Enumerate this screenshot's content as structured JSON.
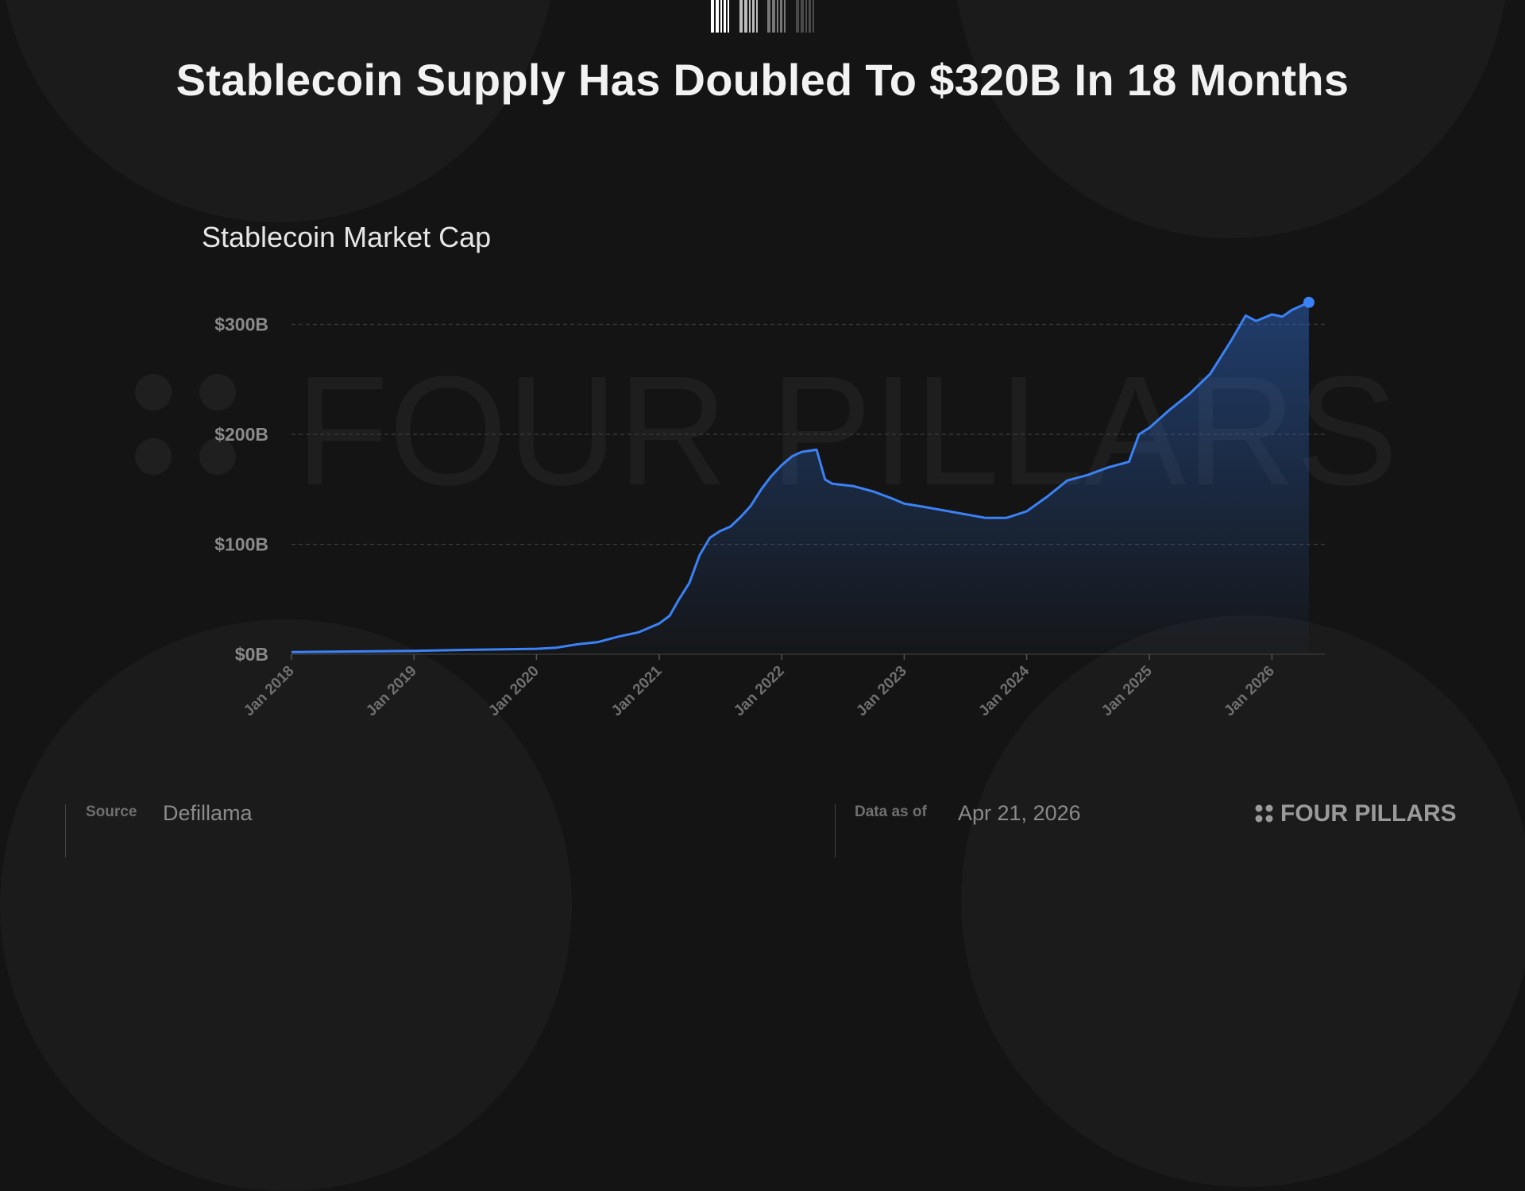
{
  "header": {
    "title": "Stablecoin Supply Has Doubled To $320B In 18 Months"
  },
  "footer": {
    "source_label": "Source",
    "source_value": "Defillama",
    "date_label": "Data as of",
    "date_value": "Apr 21, 2026",
    "brand": "FOUR PILLARS"
  },
  "watermark": "FOUR PILLARS",
  "colors": {
    "line": "#3b82f6",
    "background": "#141414"
  },
  "chart_data": {
    "type": "area",
    "title": "Stablecoin Market Cap",
    "xlabel": "",
    "ylabel": "",
    "ylim": [
      0,
      300
    ],
    "yticks": [
      {
        "v": 0,
        "label": "$0B"
      },
      {
        "v": 100,
        "label": "$100B"
      },
      {
        "v": 200,
        "label": "$200B"
      },
      {
        "v": 300,
        "label": "$300B"
      }
    ],
    "xticks": [
      {
        "d": "2018-01-01",
        "label": "Jan 2018"
      },
      {
        "d": "2019-01-01",
        "label": "Jan 2019"
      },
      {
        "d": "2020-01-01",
        "label": "Jan 2020"
      },
      {
        "d": "2021-01-01",
        "label": "Jan 2021"
      },
      {
        "d": "2022-01-01",
        "label": "Jan 2022"
      },
      {
        "d": "2023-01-01",
        "label": "Jan 2023"
      },
      {
        "d": "2024-01-01",
        "label": "Jan 2024"
      },
      {
        "d": "2025-01-01",
        "label": "Jan 2025"
      },
      {
        "d": "2026-01-01",
        "label": "Jan 2026"
      }
    ],
    "grid": "horizontal-dashed",
    "unit": "USD billions",
    "points": [
      [
        "2018-01-01",
        2
      ],
      [
        "2019-01-01",
        3
      ],
      [
        "2019-06-01",
        4
      ],
      [
        "2020-01-01",
        5
      ],
      [
        "2020-03-01",
        6
      ],
      [
        "2020-05-01",
        9
      ],
      [
        "2020-07-01",
        11
      ],
      [
        "2020-09-01",
        16
      ],
      [
        "2020-11-01",
        20
      ],
      [
        "2021-01-01",
        28
      ],
      [
        "2021-02-01",
        35
      ],
      [
        "2021-03-01",
        50
      ],
      [
        "2021-04-01",
        65
      ],
      [
        "2021-05-01",
        90
      ],
      [
        "2021-06-01",
        106
      ],
      [
        "2021-07-01",
        112
      ],
      [
        "2021-08-01",
        116
      ],
      [
        "2021-09-01",
        125
      ],
      [
        "2021-10-01",
        135
      ],
      [
        "2021-11-01",
        150
      ],
      [
        "2021-12-01",
        162
      ],
      [
        "2022-01-01",
        172
      ],
      [
        "2022-02-01",
        180
      ],
      [
        "2022-03-01",
        184
      ],
      [
        "2022-04-15",
        186
      ],
      [
        "2022-05-10",
        159
      ],
      [
        "2022-06-01",
        155
      ],
      [
        "2022-08-01",
        153
      ],
      [
        "2022-10-01",
        148
      ],
      [
        "2022-12-01",
        141
      ],
      [
        "2023-01-01",
        137
      ],
      [
        "2023-03-01",
        134
      ],
      [
        "2023-06-01",
        129
      ],
      [
        "2023-09-01",
        124
      ],
      [
        "2023-11-01",
        124
      ],
      [
        "2024-01-01",
        130
      ],
      [
        "2024-03-01",
        143
      ],
      [
        "2024-05-01",
        158
      ],
      [
        "2024-07-01",
        163
      ],
      [
        "2024-09-01",
        170
      ],
      [
        "2024-11-01",
        175
      ],
      [
        "2024-12-01",
        200
      ],
      [
        "2025-01-01",
        206
      ],
      [
        "2025-03-01",
        222
      ],
      [
        "2025-05-01",
        237
      ],
      [
        "2025-07-01",
        255
      ],
      [
        "2025-09-01",
        285
      ],
      [
        "2025-10-15",
        308
      ],
      [
        "2025-11-15",
        303
      ],
      [
        "2026-01-01",
        309
      ],
      [
        "2026-02-01",
        307
      ],
      [
        "2026-03-01",
        313
      ],
      [
        "2026-04-21",
        320
      ]
    ]
  }
}
